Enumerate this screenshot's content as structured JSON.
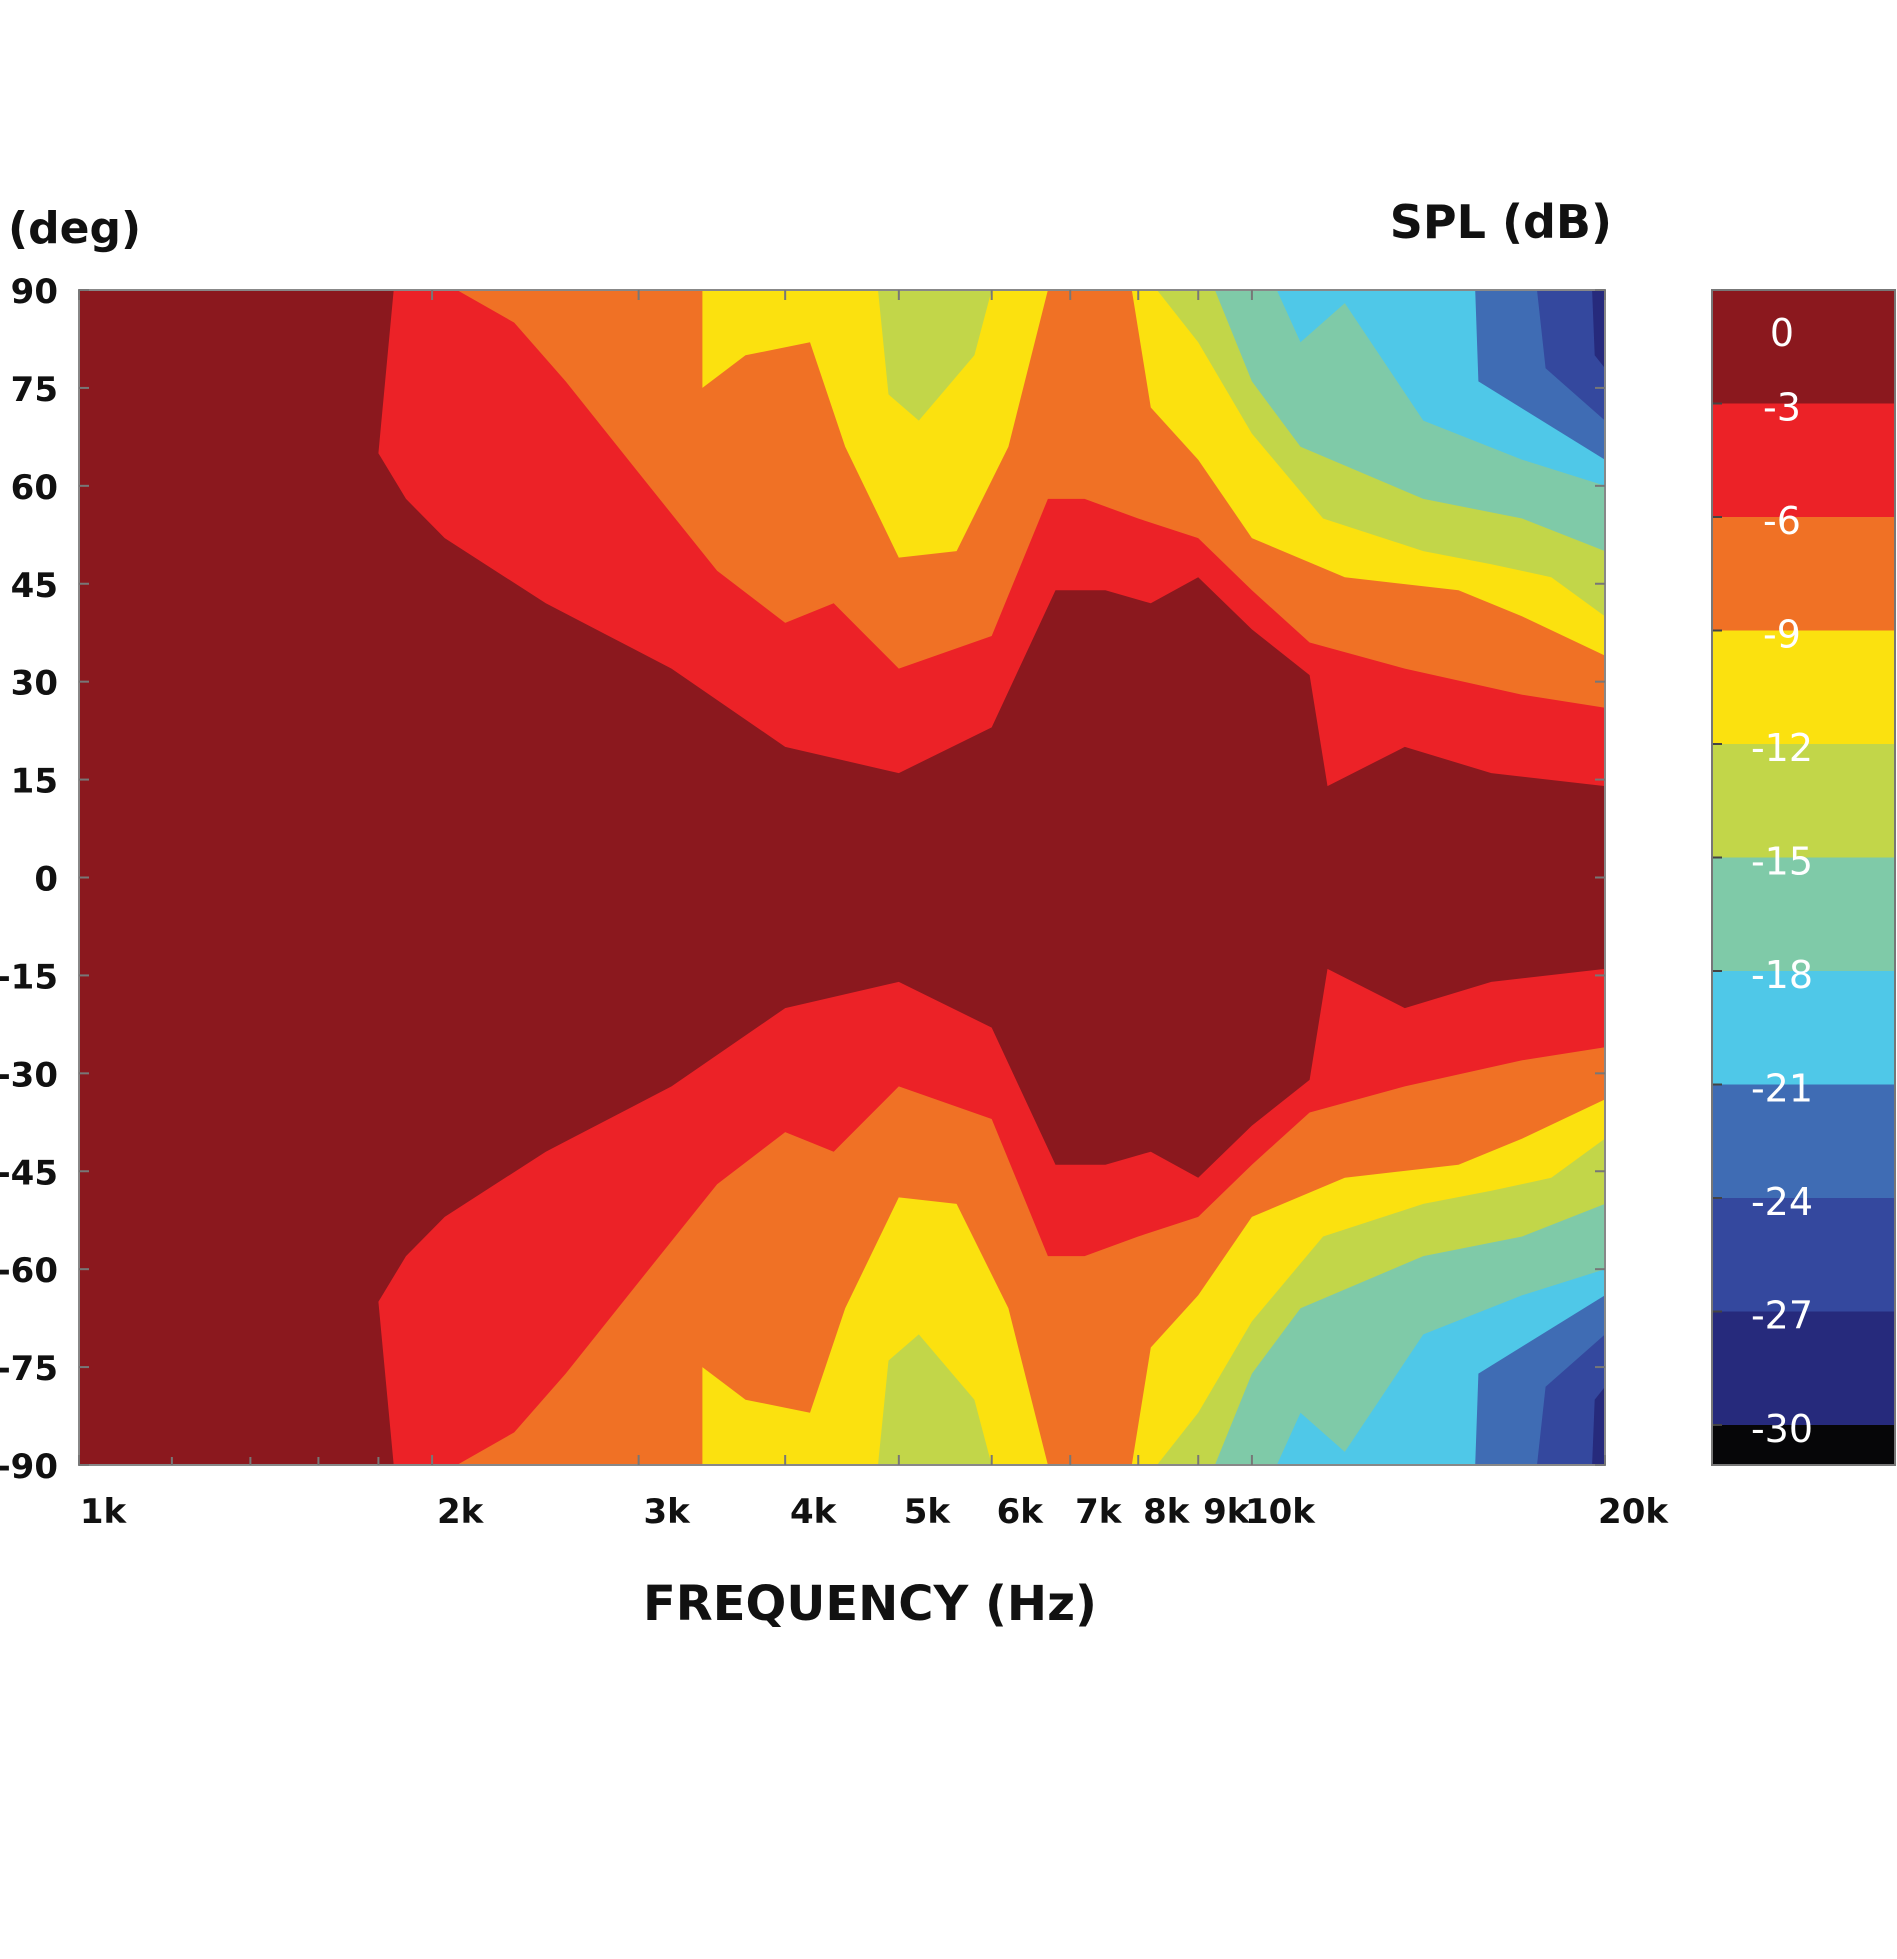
{
  "chart_data": {
    "type": "heatmap",
    "y_unit_label": "(deg)",
    "colorbar_title": "SPL (dB)",
    "xlabel": "FREQUENCY (Hz)",
    "x_scale": "log",
    "xlim": [
      1000,
      20000
    ],
    "ylim": [
      -90,
      90
    ],
    "x_ticks": [
      {
        "value": 1000,
        "label": "1k"
      },
      {
        "value": 2000,
        "label": "2k"
      },
      {
        "value": 3000,
        "label": "3k"
      },
      {
        "value": 4000,
        "label": "4k"
      },
      {
        "value": 5000,
        "label": "5k"
      },
      {
        "value": 6000,
        "label": "6k"
      },
      {
        "value": 7000,
        "label": "7k"
      },
      {
        "value": 8000,
        "label": "8k"
      },
      {
        "value": 9000,
        "label": "9k"
      },
      {
        "value": 10000,
        "label": "10k"
      },
      {
        "value": 20000,
        "label": "20k"
      }
    ],
    "y_ticks": [
      90,
      75,
      60,
      45,
      30,
      15,
      0,
      -15,
      -30,
      -45,
      -60,
      -75,
      -90
    ],
    "colorbar": {
      "levels": [
        0,
        -3,
        -6,
        -9,
        -12,
        -15,
        -18,
        -21,
        -24,
        -27,
        -30
      ],
      "labels": [
        "0",
        "-3",
        "-6",
        "-9",
        "-12",
        "-15",
        "-18",
        "-21",
        "-24",
        "-27",
        "-30"
      ],
      "colors": [
        "#8b181e",
        "#ec2227",
        "#f07125",
        "#fbe10f",
        "#c2d649",
        "#7fcaa8",
        "#4fc8e8",
        "#3f6cb4",
        "#34489e",
        "#262a7c",
        "#060608"
      ]
    },
    "contour_boundaries_upper_deg": [
      {
        "level": -3,
        "points": [
          [
            1855,
            90
          ],
          [
            1800,
            65
          ],
          [
            1900,
            58
          ],
          [
            2050,
            52
          ],
          [
            2500,
            42
          ],
          [
            3200,
            32
          ],
          [
            4000,
            20
          ],
          [
            5000,
            16
          ],
          [
            6000,
            23
          ],
          [
            6800,
            44
          ],
          [
            7500,
            44
          ],
          [
            8200,
            42
          ],
          [
            9000,
            46
          ],
          [
            10000,
            38
          ],
          [
            11200,
            31
          ],
          [
            11600,
            14
          ],
          [
            13500,
            20
          ],
          [
            16000,
            16
          ],
          [
            20000,
            14
          ]
        ]
      },
      {
        "level": -6,
        "points": [
          [
            2100,
            90
          ],
          [
            2350,
            85
          ],
          [
            2600,
            76
          ],
          [
            3000,
            62
          ],
          [
            3500,
            47
          ],
          [
            4000,
            39
          ],
          [
            4400,
            42
          ],
          [
            5000,
            32
          ],
          [
            6000,
            37
          ],
          [
            6700,
            58
          ],
          [
            7200,
            58
          ],
          [
            8000,
            55
          ],
          [
            9000,
            52
          ],
          [
            10000,
            44
          ],
          [
            11200,
            36
          ],
          [
            13500,
            32
          ],
          [
            17000,
            28
          ],
          [
            20000,
            26
          ]
        ]
      },
      {
        "level": -9,
        "points": [
          [
            3400,
            90
          ],
          [
            3400,
            75
          ],
          [
            3700,
            80
          ],
          [
            4200,
            82
          ],
          [
            4500,
            66
          ],
          [
            5000,
            49
          ],
          [
            5600,
            50
          ],
          [
            6200,
            66
          ],
          [
            6700,
            90
          ],
          [
            7900,
            90
          ],
          [
            8200,
            72
          ],
          [
            9000,
            64
          ],
          [
            10000,
            52
          ],
          [
            12000,
            46
          ],
          [
            15000,
            44
          ],
          [
            17000,
            40
          ],
          [
            20000,
            34
          ]
        ]
      },
      {
        "level": -12,
        "points": [
          [
            4800,
            90
          ],
          [
            4900,
            74
          ],
          [
            5200,
            70
          ],
          [
            5800,
            80
          ],
          [
            6000,
            90
          ],
          [
            8300,
            90
          ],
          [
            9000,
            82
          ],
          [
            10000,
            68
          ],
          [
            11500,
            55
          ],
          [
            14000,
            50
          ],
          [
            16000,
            48
          ],
          [
            18000,
            46
          ],
          [
            20000,
            40
          ]
        ]
      },
      {
        "level": -15,
        "points": [
          [
            9300,
            90
          ],
          [
            10000,
            76
          ],
          [
            11000,
            66
          ],
          [
            14000,
            58
          ],
          [
            17000,
            55
          ],
          [
            20000,
            50
          ]
        ]
      },
      {
        "level": -18,
        "points": [
          [
            10500,
            90
          ],
          [
            11000,
            82
          ],
          [
            12000,
            88
          ],
          [
            14000,
            70
          ],
          [
            17000,
            64
          ],
          [
            20000,
            60
          ]
        ]
      },
      {
        "level": -21,
        "points": [
          [
            15500,
            90
          ],
          [
            15600,
            76
          ],
          [
            20000,
            64
          ]
        ]
      },
      {
        "level": -24,
        "points": [
          [
            17500,
            90
          ],
          [
            17800,
            78
          ],
          [
            20000,
            70
          ]
        ]
      },
      {
        "level": -27,
        "points": [
          [
            19500,
            90
          ],
          [
            19600,
            80
          ],
          [
            20000,
            78
          ]
        ]
      }
    ]
  }
}
